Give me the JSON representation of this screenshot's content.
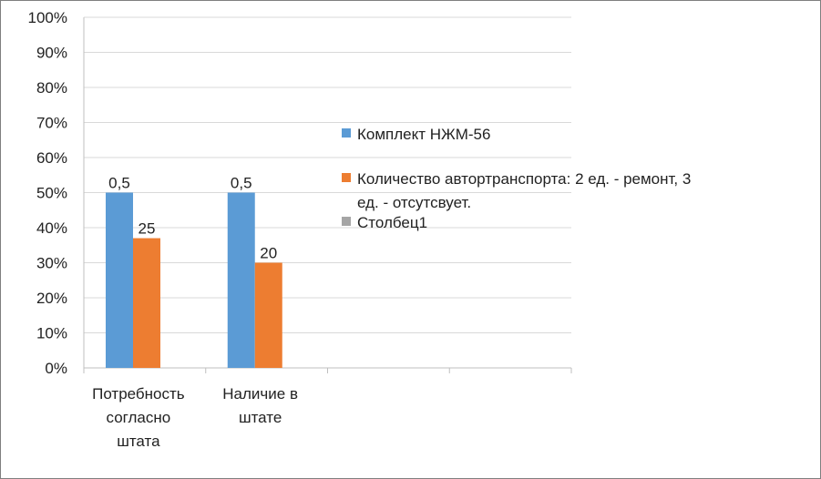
{
  "chart_data": {
    "type": "bar",
    "title": "",
    "xlabel": "",
    "ylabel": "",
    "ylim": [
      0,
      100
    ],
    "y_ticks": [
      "0%",
      "10%",
      "20%",
      "30%",
      "40%",
      "50%",
      "60%",
      "70%",
      "80%",
      "90%",
      "100%"
    ],
    "grid": true,
    "legend_position": "right",
    "categories": [
      [
        "Потребность",
        "согласно",
        "штата"
      ],
      [
        "Наличие в",
        "штате"
      ],
      [],
      []
    ],
    "series": [
      {
        "name": "Комплект НЖМ-56",
        "color": "#5b9bd5",
        "values": [
          50,
          50,
          null,
          null
        ],
        "labels": [
          "0,5",
          "0,5",
          "",
          ""
        ]
      },
      {
        "name_lines": [
          "Количество автортранспорта: 2 ед. - ремонт, 3",
          "ед. - отсутсвует."
        ],
        "color": "#ed7d31",
        "values": [
          37,
          30,
          null,
          null
        ],
        "labels": [
          "25",
          "20",
          "",
          ""
        ]
      },
      {
        "name": "Столбец1",
        "color": "#a5a5a5",
        "values": [
          null,
          null,
          null,
          null
        ],
        "labels": [
          "",
          "",
          "",
          ""
        ]
      }
    ]
  }
}
